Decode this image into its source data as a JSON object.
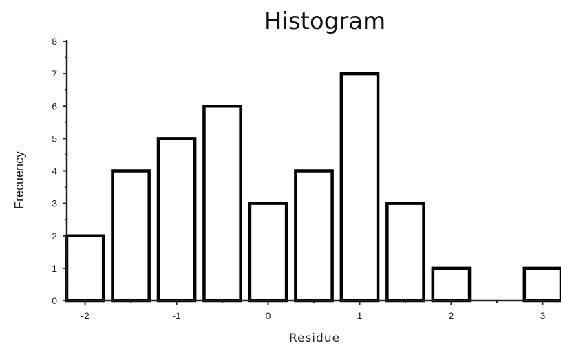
{
  "chart_data": {
    "type": "bar",
    "title": "Histogram",
    "xlabel": "Residue",
    "ylabel": "Frecuency",
    "categories": [
      "-2",
      "-1.5",
      "-1",
      "-0.5",
      "0",
      "0.5",
      "1",
      "1.5",
      "2",
      "2.5",
      "3"
    ],
    "x": [
      -2,
      -1.5,
      -1,
      -0.5,
      0,
      0.5,
      1,
      1.5,
      2,
      2.5,
      3
    ],
    "values": [
      2,
      4,
      5,
      6,
      3,
      4,
      7,
      3,
      1,
      0,
      1
    ],
    "bin_width": 0.4,
    "xlim": [
      -2.2,
      3.2
    ],
    "ylim": [
      0,
      8
    ],
    "xticks": [
      -2,
      -1,
      0,
      1,
      2,
      3
    ],
    "xtick_labels": [
      "-2",
      "-1",
      "0",
      "1",
      "2",
      "3"
    ],
    "yticks": [
      0,
      1,
      2,
      3,
      4,
      5,
      6,
      7,
      8
    ],
    "ytick_labels": [
      "0",
      "1",
      "2",
      "3",
      "4",
      "5",
      "6",
      "7",
      "8"
    ],
    "grid": false,
    "legend": "none",
    "colors": {
      "bar_fill": "#ffffff",
      "bar_stroke": "#000000",
      "axis": "#222222",
      "text": "#111111"
    }
  }
}
